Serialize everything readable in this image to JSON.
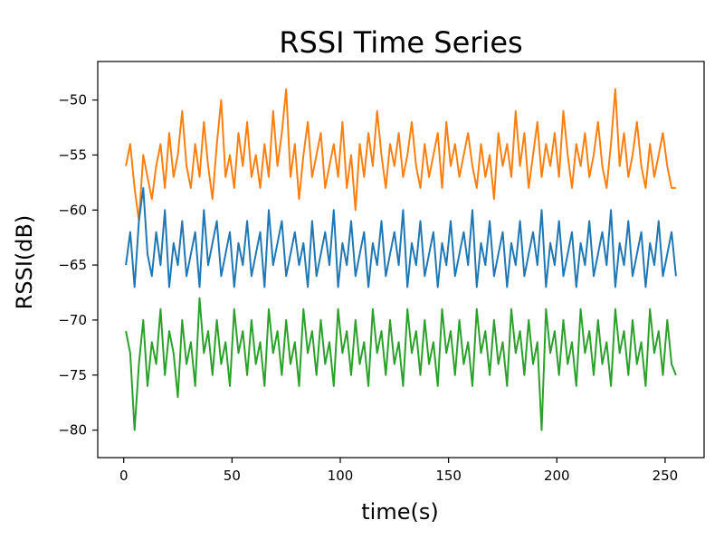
{
  "chart_data": {
    "type": "line",
    "title": "RSSI Time Series",
    "xlabel": "time(s)",
    "ylabel": "RSSI(dB)",
    "xlim": [
      -12,
      268
    ],
    "ylim": [
      -82.5,
      -46.5
    ],
    "x_ticks": [
      0,
      50,
      100,
      150,
      200,
      250
    ],
    "y_ticks": [
      -50,
      -55,
      -60,
      -65,
      -70,
      -75,
      -80
    ],
    "x_tick_labels": [
      "0",
      "50",
      "100",
      "150",
      "200",
      "250"
    ],
    "y_tick_labels": [
      "−50",
      "−55",
      "−60",
      "−65",
      "−70",
      "−75",
      "−80"
    ],
    "grid": false,
    "legend": "none",
    "series": [
      {
        "color": "#ff7f0e",
        "x": [
          1,
          3,
          5,
          7,
          9,
          11,
          13,
          15,
          17,
          19,
          21,
          23,
          25,
          27,
          29,
          31,
          33,
          35,
          37,
          39,
          41,
          43,
          45,
          47,
          49,
          51,
          53,
          55,
          57,
          59,
          61,
          63,
          65,
          67,
          69,
          71,
          73,
          75,
          77,
          79,
          81,
          83,
          85,
          87,
          89,
          91,
          93,
          95,
          97,
          99,
          101,
          103,
          105,
          107,
          109,
          111,
          113,
          115,
          117,
          119,
          121,
          123,
          125,
          127,
          129,
          131,
          133,
          135,
          137,
          139,
          141,
          143,
          145,
          147,
          149,
          151,
          153,
          155,
          157,
          159,
          161,
          163,
          165,
          167,
          169,
          171,
          173,
          175,
          177,
          179,
          181,
          183,
          185,
          187,
          189,
          191,
          193,
          195,
          197,
          199,
          201,
          203,
          205,
          207,
          209,
          211,
          213,
          215,
          217,
          219,
          221,
          223,
          225,
          227,
          229,
          231,
          233,
          235,
          237,
          239,
          241,
          243,
          245,
          247,
          249,
          251,
          253,
          255
        ],
        "y": [
          -56,
          -54,
          -58,
          -61,
          -55,
          -57,
          -59,
          -56,
          -54,
          -58,
          -53,
          -57,
          -55,
          -51,
          -56,
          -58,
          -54,
          -57,
          -52,
          -56,
          -59,
          -54,
          -50,
          -57,
          -55,
          -58,
          -53,
          -56,
          -52,
          -57,
          -55,
          -58,
          -54,
          -57,
          -51,
          -56,
          -53,
          -49,
          -57,
          -54,
          -59,
          -55,
          -52,
          -57,
          -55,
          -53,
          -58,
          -56,
          -54,
          -57,
          -52,
          -58,
          -55,
          -60,
          -54,
          -57,
          -53,
          -56,
          -51,
          -55,
          -58,
          -54,
          -56,
          -53,
          -57,
          -55,
          -52,
          -56,
          -58,
          -54,
          -57,
          -55,
          -53,
          -58,
          -52,
          -56,
          -54,
          -57,
          -55,
          -53,
          -56,
          -58,
          -54,
          -57,
          -55,
          -59,
          -53,
          -56,
          -54,
          -57,
          -51,
          -56,
          -53,
          -58,
          -55,
          -52,
          -57,
          -54,
          -56,
          -53,
          -57,
          -51,
          -55,
          -58,
          -54,
          -56,
          -53,
          -57,
          -55,
          -52,
          -56,
          -58,
          -54,
          -49,
          -56,
          -53,
          -57,
          -55,
          -52,
          -56,
          -58,
          -54,
          -57,
          -55,
          -53,
          -56,
          -58,
          -58
        ]
      },
      {
        "color": "#1f77b4",
        "x": [
          1,
          3,
          5,
          7,
          9,
          11,
          13,
          15,
          17,
          19,
          21,
          23,
          25,
          27,
          29,
          31,
          33,
          35,
          37,
          39,
          41,
          43,
          45,
          47,
          49,
          51,
          53,
          55,
          57,
          59,
          61,
          63,
          65,
          67,
          69,
          71,
          73,
          75,
          77,
          79,
          81,
          83,
          85,
          87,
          89,
          91,
          93,
          95,
          97,
          99,
          101,
          103,
          105,
          107,
          109,
          111,
          113,
          115,
          117,
          119,
          121,
          123,
          125,
          127,
          129,
          131,
          133,
          135,
          137,
          139,
          141,
          143,
          145,
          147,
          149,
          151,
          153,
          155,
          157,
          159,
          161,
          163,
          165,
          167,
          169,
          171,
          173,
          175,
          177,
          179,
          181,
          183,
          185,
          187,
          189,
          191,
          193,
          195,
          197,
          199,
          201,
          203,
          205,
          207,
          209,
          211,
          213,
          215,
          217,
          219,
          221,
          223,
          225,
          227,
          229,
          231,
          233,
          235,
          237,
          239,
          241,
          243,
          245,
          247,
          249,
          251,
          253,
          255
        ],
        "y": [
          -65,
          -62,
          -67,
          -61,
          -58,
          -64,
          -66,
          -62,
          -65,
          -60,
          -67,
          -63,
          -65,
          -61,
          -66,
          -64,
          -62,
          -67,
          -60,
          -65,
          -63,
          -61,
          -66,
          -64,
          -62,
          -67,
          -63,
          -65,
          -61,
          -66,
          -64,
          -62,
          -67,
          -60,
          -65,
          -63,
          -61,
          -66,
          -64,
          -62,
          -65,
          -63,
          -67,
          -61,
          -66,
          -64,
          -62,
          -65,
          -60,
          -67,
          -63,
          -65,
          -61,
          -66,
          -64,
          -62,
          -67,
          -63,
          -65,
          -61,
          -66,
          -64,
          -62,
          -65,
          -60,
          -67,
          -63,
          -65,
          -61,
          -66,
          -64,
          -62,
          -67,
          -63,
          -65,
          -61,
          -66,
          -64,
          -62,
          -65,
          -60,
          -67,
          -63,
          -65,
          -61,
          -66,
          -64,
          -62,
          -67,
          -63,
          -65,
          -61,
          -66,
          -64,
          -62,
          -65,
          -60,
          -67,
          -63,
          -65,
          -61,
          -66,
          -64,
          -62,
          -67,
          -63,
          -65,
          -61,
          -66,
          -64,
          -62,
          -65,
          -60,
          -67,
          -63,
          -65,
          -61,
          -66,
          -64,
          -62,
          -67,
          -63,
          -65,
          -61,
          -66,
          -64,
          -62,
          -66
        ]
      },
      {
        "color": "#2ca02c",
        "x": [
          1,
          3,
          5,
          7,
          9,
          11,
          13,
          15,
          17,
          19,
          21,
          23,
          25,
          27,
          29,
          31,
          33,
          35,
          37,
          39,
          41,
          43,
          45,
          47,
          49,
          51,
          53,
          55,
          57,
          59,
          61,
          63,
          65,
          67,
          69,
          71,
          73,
          75,
          77,
          79,
          81,
          83,
          85,
          87,
          89,
          91,
          93,
          95,
          97,
          99,
          101,
          103,
          105,
          107,
          109,
          111,
          113,
          115,
          117,
          119,
          121,
          123,
          125,
          127,
          129,
          131,
          133,
          135,
          137,
          139,
          141,
          143,
          145,
          147,
          149,
          151,
          153,
          155,
          157,
          159,
          161,
          163,
          165,
          167,
          169,
          171,
          173,
          175,
          177,
          179,
          181,
          183,
          185,
          187,
          189,
          191,
          193,
          195,
          197,
          199,
          201,
          203,
          205,
          207,
          209,
          211,
          213,
          215,
          217,
          219,
          221,
          223,
          225,
          227,
          229,
          231,
          233,
          235,
          237,
          239,
          241,
          243,
          245,
          247,
          249,
          251,
          253,
          255
        ],
        "y": [
          -71,
          -73,
          -80,
          -74,
          -70,
          -76,
          -72,
          -74,
          -69,
          -75,
          -71,
          -73,
          -77,
          -70,
          -74,
          -72,
          -76,
          -68,
          -73,
          -71,
          -75,
          -70,
          -74,
          -72,
          -76,
          -69,
          -73,
          -71,
          -75,
          -70,
          -74,
          -72,
          -76,
          -69,
          -73,
          -71,
          -75,
          -70,
          -74,
          -72,
          -76,
          -69,
          -73,
          -71,
          -75,
          -70,
          -74,
          -72,
          -76,
          -69,
          -73,
          -71,
          -75,
          -70,
          -74,
          -72,
          -76,
          -69,
          -73,
          -71,
          -75,
          -70,
          -74,
          -72,
          -76,
          -69,
          -73,
          -71,
          -75,
          -70,
          -74,
          -72,
          -76,
          -69,
          -73,
          -71,
          -75,
          -70,
          -74,
          -72,
          -76,
          -69,
          -73,
          -71,
          -75,
          -70,
          -74,
          -72,
          -76,
          -69,
          -73,
          -71,
          -75,
          -70,
          -74,
          -72,
          -80,
          -69,
          -73,
          -71,
          -75,
          -70,
          -74,
          -72,
          -76,
          -69,
          -73,
          -71,
          -75,
          -70,
          -74,
          -72,
          -76,
          -69,
          -73,
          -71,
          -75,
          -70,
          -74,
          -72,
          -76,
          -69,
          -73,
          -71,
          -75,
          -70,
          -74,
          -75
        ]
      }
    ]
  }
}
